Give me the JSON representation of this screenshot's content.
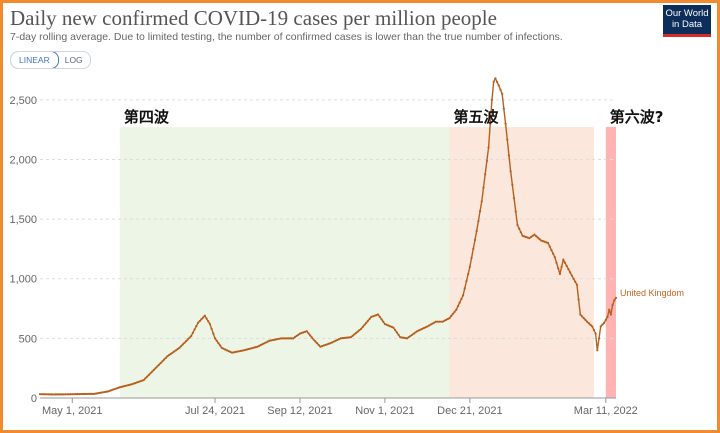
{
  "header": {
    "title": "Daily new confirmed COVID-19 cases per million people",
    "subtitle": "7-day rolling average. Due to limited testing, the number of confirmed cases is lower than the true number of infections.",
    "scale_linear": "LINEAR",
    "scale_log": "LOG",
    "logo_line1": "Our World",
    "logo_line2": "in Data"
  },
  "colors": {
    "line": "#b85f1e",
    "wave4": "#edf5e6",
    "wave5": "#fbe7db",
    "wave6": "#ffb3b3",
    "grid": "#dddddd",
    "series_label": "#c9641c"
  },
  "chart_data": {
    "type": "line",
    "title": "Daily new confirmed COVID-19 cases per million people",
    "subtitle": "7-day rolling average. Due to limited testing, the number of confirmed cases is lower than the true number of infections.",
    "x_axis": {
      "start": "2021-04-12",
      "end": "2022-03-17",
      "ticks": [
        {
          "date": "2021-05-01",
          "label": "May 1, 2021"
        },
        {
          "date": "2021-07-24",
          "label": "Jul 24, 2021"
        },
        {
          "date": "2021-09-12",
          "label": "Sep 12, 2021"
        },
        {
          "date": "2021-11-01",
          "label": "Nov 1, 2021"
        },
        {
          "date": "2021-12-21",
          "label": "Dec 21, 2021"
        },
        {
          "date": "2022-03-11",
          "label": "Mar 11, 2022"
        }
      ]
    },
    "y_axis": {
      "min": 0,
      "max": 2750,
      "ticks": [
        0,
        500,
        1000,
        1500,
        2000,
        2500
      ],
      "tick_labels": [
        "0",
        "500",
        "1,000",
        "1,500",
        "2,000",
        "2,500"
      ],
      "grid": true
    },
    "annotations": [
      {
        "label": "第四波",
        "start": "2021-05-29",
        "end": "2021-12-09",
        "color_key": "wave4"
      },
      {
        "label": "第五波",
        "start": "2021-12-09",
        "end": "2022-03-04",
        "color_key": "wave5"
      },
      {
        "label": "第六波?",
        "start": "2022-03-11",
        "end": "2022-03-26",
        "color_key": "wave6"
      }
    ],
    "series": [
      {
        "name": "United Kingdom",
        "points": [
          [
            "2021-04-12",
            32
          ],
          [
            "2021-04-20",
            30
          ],
          [
            "2021-04-28",
            31
          ],
          [
            "2021-05-06",
            33
          ],
          [
            "2021-05-14",
            35
          ],
          [
            "2021-05-22",
            55
          ],
          [
            "2021-05-29",
            90
          ],
          [
            "2021-06-05",
            115
          ],
          [
            "2021-06-12",
            150
          ],
          [
            "2021-06-19",
            250
          ],
          [
            "2021-06-26",
            350
          ],
          [
            "2021-07-03",
            420
          ],
          [
            "2021-07-10",
            520
          ],
          [
            "2021-07-14",
            630
          ],
          [
            "2021-07-18",
            690
          ],
          [
            "2021-07-21",
            620
          ],
          [
            "2021-07-24",
            500
          ],
          [
            "2021-07-28",
            420
          ],
          [
            "2021-08-03",
            380
          ],
          [
            "2021-08-10",
            400
          ],
          [
            "2021-08-18",
            430
          ],
          [
            "2021-08-25",
            480
          ],
          [
            "2021-09-01",
            500
          ],
          [
            "2021-09-08",
            500
          ],
          [
            "2021-09-12",
            540
          ],
          [
            "2021-09-16",
            560
          ],
          [
            "2021-09-20",
            490
          ],
          [
            "2021-09-24",
            430
          ],
          [
            "2021-09-30",
            460
          ],
          [
            "2021-10-06",
            500
          ],
          [
            "2021-10-12",
            510
          ],
          [
            "2021-10-18",
            580
          ],
          [
            "2021-10-24",
            680
          ],
          [
            "2021-10-28",
            700
          ],
          [
            "2021-11-01",
            620
          ],
          [
            "2021-11-06",
            590
          ],
          [
            "2021-11-10",
            510
          ],
          [
            "2021-11-14",
            500
          ],
          [
            "2021-11-20",
            560
          ],
          [
            "2021-11-26",
            600
          ],
          [
            "2021-12-01",
            640
          ],
          [
            "2021-12-05",
            640
          ],
          [
            "2021-12-09",
            670
          ],
          [
            "2021-12-13",
            740
          ],
          [
            "2021-12-17",
            860
          ],
          [
            "2021-12-21",
            1100
          ],
          [
            "2021-12-25",
            1400
          ],
          [
            "2021-12-28",
            1650
          ],
          [
            "2022-01-01",
            2100
          ],
          [
            "2022-01-03",
            2500
          ],
          [
            "2022-01-04",
            2650
          ],
          [
            "2022-01-05",
            2680
          ],
          [
            "2022-01-07",
            2620
          ],
          [
            "2022-01-09",
            2550
          ],
          [
            "2022-01-11",
            2300
          ],
          [
            "2022-01-14",
            1900
          ],
          [
            "2022-01-18",
            1450
          ],
          [
            "2022-01-21",
            1360
          ],
          [
            "2022-01-25",
            1340
          ],
          [
            "2022-01-28",
            1370
          ],
          [
            "2022-02-01",
            1320
          ],
          [
            "2022-02-05",
            1300
          ],
          [
            "2022-02-09",
            1180
          ],
          [
            "2022-02-12",
            1040
          ],
          [
            "2022-02-14",
            1160
          ],
          [
            "2022-02-17",
            1080
          ],
          [
            "2022-02-20",
            1000
          ],
          [
            "2022-02-22",
            950
          ],
          [
            "2022-02-24",
            700
          ],
          [
            "2022-02-28",
            640
          ],
          [
            "2022-03-03",
            600
          ],
          [
            "2022-03-05",
            540
          ],
          [
            "2022-03-06",
            400
          ],
          [
            "2022-03-08",
            600
          ],
          [
            "2022-03-10",
            630
          ],
          [
            "2022-03-12",
            680
          ],
          [
            "2022-03-13",
            740
          ],
          [
            "2022-03-14",
            700
          ],
          [
            "2022-03-15",
            780
          ],
          [
            "2022-03-16",
            820
          ],
          [
            "2022-03-17",
            840
          ]
        ]
      }
    ]
  }
}
